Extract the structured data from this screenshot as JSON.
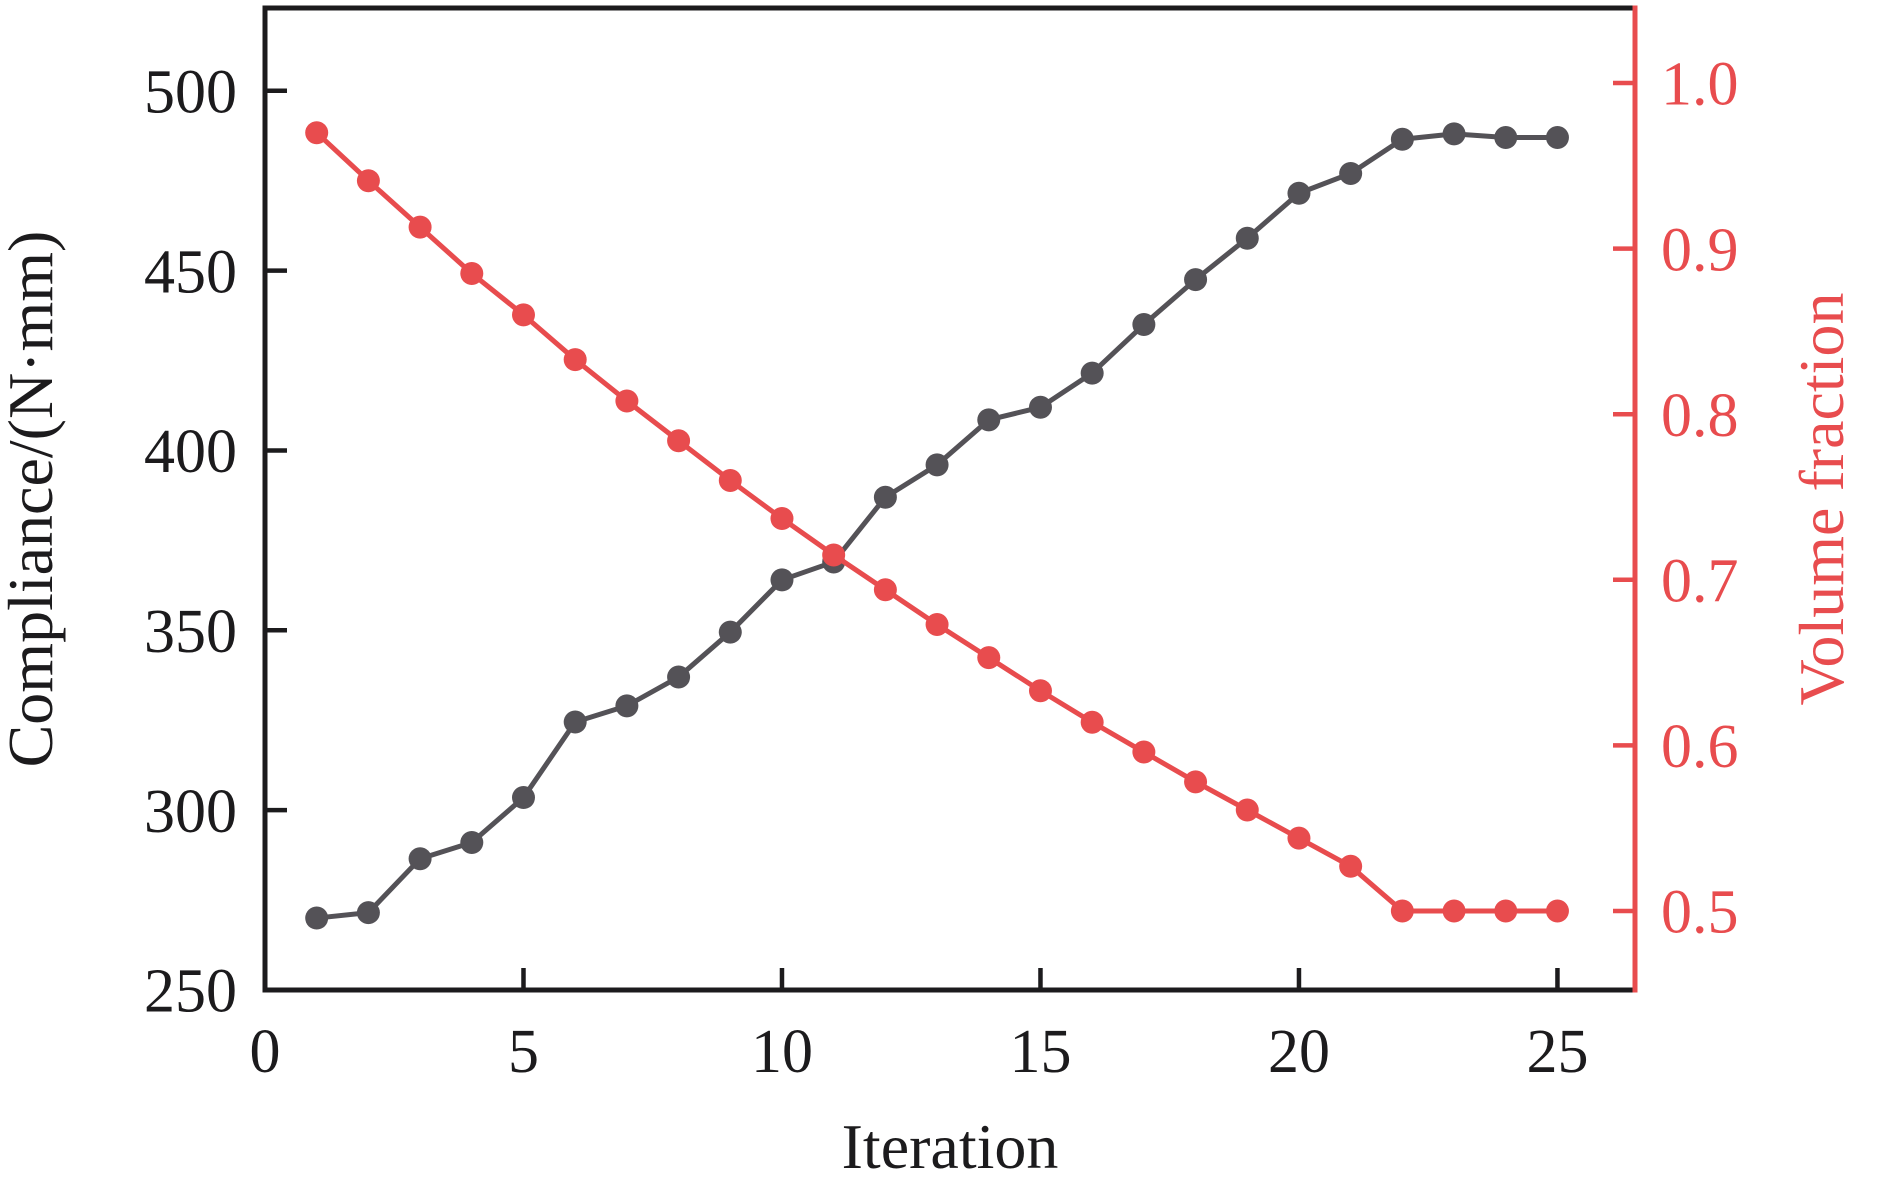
{
  "figure": {
    "background": "#ffffff",
    "text_color": "#1c1b1d"
  },
  "chart_data": {
    "type": "line",
    "title": "",
    "xlabel": "Iteration",
    "x": [
      1,
      2,
      3,
      4,
      5,
      6,
      7,
      8,
      9,
      10,
      11,
      12,
      13,
      14,
      15,
      16,
      17,
      18,
      19,
      20,
      21,
      22,
      23,
      24,
      25
    ],
    "x_ticks": [
      0,
      5,
      10,
      15,
      20,
      25
    ],
    "x_tick_labels": [
      "0",
      "5",
      "10",
      "15",
      "20",
      "25"
    ],
    "x_range": [
      0,
      26.5
    ],
    "grid": false,
    "legend": "none",
    "y_left": {
      "label": "Compliance/(N·mm)",
      "ticks": [
        250,
        300,
        350,
        400,
        450,
        500
      ],
      "tick_labels": [
        "250",
        "300",
        "350",
        "400",
        "450",
        "500"
      ],
      "range": [
        250,
        523
      ],
      "color": "#1c1b1d"
    },
    "y_right": {
      "label": "Volume fraction",
      "ticks": [
        0.5,
        0.6,
        0.7,
        0.8,
        0.9,
        1.0
      ],
      "tick_labels": [
        "0.5",
        "0.6",
        "0.7",
        "0.8",
        "0.9",
        "1.0"
      ],
      "range": [
        0.4523,
        1.0453
      ],
      "color": "#e84c4e"
    },
    "series": [
      {
        "name": "Compliance",
        "axis": "left",
        "color": "#545257",
        "marker": "circle",
        "values": [
          270,
          271.5,
          286.5,
          291,
          303.5,
          324.5,
          329,
          337,
          349.5,
          364,
          369,
          387,
          396,
          408.5,
          412,
          421.5,
          435,
          447.5,
          459,
          471.5,
          477,
          486.5,
          488,
          487,
          487
        ]
      },
      {
        "name": "Volume fraction",
        "axis": "right",
        "color": "#e84c4e",
        "marker": "circle",
        "values": [
          0.97,
          0.941,
          0.913,
          0.885,
          0.86,
          0.833,
          0.808,
          0.784,
          0.76,
          0.737,
          0.715,
          0.694,
          0.673,
          0.653,
          0.633,
          0.614,
          0.596,
          0.578,
          0.561,
          0.544,
          0.527,
          0.5,
          0.5,
          0.5,
          0.5
        ]
      }
    ]
  }
}
